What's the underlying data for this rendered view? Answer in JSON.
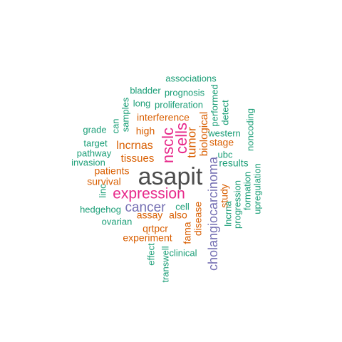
{
  "palette": {
    "gray": "#4d4d4d",
    "teal": "#1b9e77",
    "orange": "#d95f02",
    "purple": "#7570b3",
    "magenta": "#e7298a"
  },
  "words": [
    {
      "id": "associations",
      "text": "associations",
      "color": "teal"
    },
    {
      "id": "bladder",
      "text": "bladder",
      "color": "teal"
    },
    {
      "id": "prognosis",
      "text": "prognosis",
      "color": "teal"
    },
    {
      "id": "long",
      "text": "long",
      "color": "teal"
    },
    {
      "id": "proliferation",
      "text": "proliferation",
      "color": "teal"
    },
    {
      "id": "performed",
      "text": "performed",
      "color": "teal"
    },
    {
      "id": "interference",
      "text": "interference",
      "color": "orange"
    },
    {
      "id": "detect",
      "text": "detect",
      "color": "teal"
    },
    {
      "id": "noncoding",
      "text": "noncoding",
      "color": "teal"
    },
    {
      "id": "grade",
      "text": "grade",
      "color": "teal"
    },
    {
      "id": "can",
      "text": "can",
      "color": "teal"
    },
    {
      "id": "samples",
      "text": "samples",
      "color": "teal"
    },
    {
      "id": "high",
      "text": "high",
      "color": "orange"
    },
    {
      "id": "biological",
      "text": "biological",
      "color": "orange"
    },
    {
      "id": "western",
      "text": "western",
      "color": "teal"
    },
    {
      "id": "target",
      "text": "target",
      "color": "teal"
    },
    {
      "id": "lncrnas",
      "text": "lncrnas",
      "color": "orange"
    },
    {
      "id": "nsclc",
      "text": "nsclc",
      "color": "magenta"
    },
    {
      "id": "cells",
      "text": "cells",
      "color": "magenta"
    },
    {
      "id": "tumor",
      "text": "tumor",
      "color": "orange"
    },
    {
      "id": "stage",
      "text": "stage",
      "color": "orange"
    },
    {
      "id": "pathway",
      "text": "pathway",
      "color": "teal"
    },
    {
      "id": "tissues",
      "text": "tissues",
      "color": "orange"
    },
    {
      "id": "ubc",
      "text": "ubc",
      "color": "teal"
    },
    {
      "id": "invasion",
      "text": "invasion",
      "color": "teal"
    },
    {
      "id": "results",
      "text": "results",
      "color": "teal"
    },
    {
      "id": "patients",
      "text": "patients",
      "color": "orange"
    },
    {
      "id": "asapit",
      "text": "asapit",
      "color": "gray"
    },
    {
      "id": "survival",
      "text": "survival",
      "color": "orange"
    },
    {
      "id": "linc",
      "text": "linc",
      "color": "teal"
    },
    {
      "id": "upregulation",
      "text": "upregulation",
      "color": "teal"
    },
    {
      "id": "formation",
      "text": "formation",
      "color": "teal"
    },
    {
      "id": "expression",
      "text": "expression",
      "color": "magenta"
    },
    {
      "id": "study",
      "text": "study",
      "color": "orange"
    },
    {
      "id": "cholangiocarcinoma",
      "text": "cholangiocarcinoma",
      "color": "purple"
    },
    {
      "id": "progression",
      "text": "progression",
      "color": "teal"
    },
    {
      "id": "lncrna",
      "text": "lncrna",
      "color": "teal"
    },
    {
      "id": "hedgehog",
      "text": "hedgehog",
      "color": "teal"
    },
    {
      "id": "cancer",
      "text": "cancer",
      "color": "purple"
    },
    {
      "id": "cell",
      "text": "cell",
      "color": "teal"
    },
    {
      "id": "fama",
      "text": "fama",
      "color": "orange"
    },
    {
      "id": "assay",
      "text": "assay",
      "color": "orange"
    },
    {
      "id": "also",
      "text": "also",
      "color": "orange"
    },
    {
      "id": "ovarian",
      "text": "ovarian",
      "color": "teal"
    },
    {
      "id": "disease",
      "text": "disease",
      "color": "orange"
    },
    {
      "id": "qrtpcr",
      "text": "qrtpcr",
      "color": "orange"
    },
    {
      "id": "experiment",
      "text": "experiment",
      "color": "orange"
    },
    {
      "id": "effect",
      "text": "effect",
      "color": "teal"
    },
    {
      "id": "clinical",
      "text": "clinical",
      "color": "teal"
    },
    {
      "id": "transwell",
      "text": "transwell",
      "color": "teal"
    }
  ]
}
